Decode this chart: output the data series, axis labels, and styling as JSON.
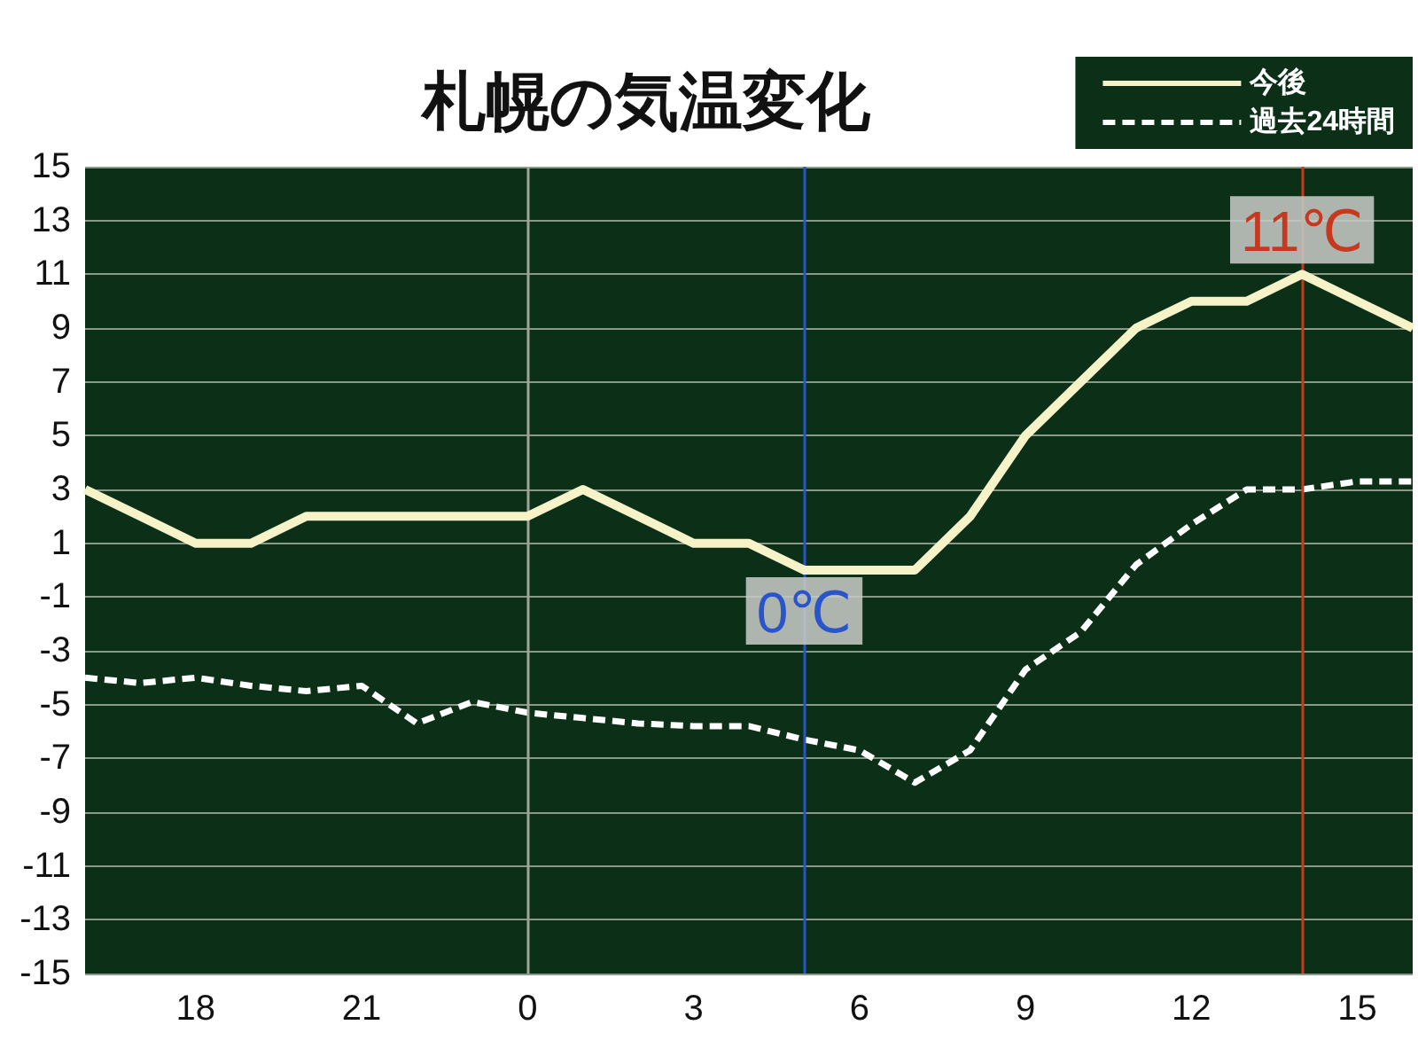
{
  "chart_data": {
    "type": "line",
    "title": "札幌の気温変化",
    "categories": [
      null,
      null,
      "18",
      null,
      null,
      "21",
      null,
      null,
      "0",
      null,
      null,
      "3",
      null,
      null,
      "6",
      null,
      null,
      "9",
      null,
      null,
      "12",
      null,
      null,
      "15",
      null
    ],
    "series": [
      {
        "name": "今後",
        "color": "#f6f3c9",
        "line_style": "solid",
        "values": [
          3,
          2,
          1,
          1,
          2,
          2,
          2,
          2,
          2,
          3,
          2,
          1,
          1,
          0,
          0,
          0,
          2,
          5,
          7,
          9,
          10,
          10,
          11,
          10,
          9
        ]
      },
      {
        "name": "過去24時間",
        "color": "#ffffff",
        "line_style": "dashed",
        "values": [
          -4,
          -4.2,
          -4,
          -4.3,
          -4.5,
          -4.3,
          -5.7,
          -4.9,
          -5.3,
          -5.5,
          -5.7,
          -5.8,
          -5.8,
          -6.3,
          -6.7,
          -7.9,
          -6.7,
          -3.7,
          -2.3,
          0.2,
          1.7,
          3,
          3,
          3.3,
          3.3
        ]
      }
    ],
    "ylim": [
      -15,
      15
    ],
    "yticks": [
      -15,
      -13,
      -11,
      -9,
      -7,
      -5,
      -3,
      -1,
      1,
      3,
      5,
      7,
      9,
      11,
      13,
      15
    ],
    "grid": "y",
    "legend": "top right",
    "ref_lines": [
      {
        "axis": "x",
        "value": "0",
        "color": "#9ea69c"
      }
    ],
    "annotations": [
      {
        "text": "0℃",
        "y": 0
      },
      {
        "text": "11℃",
        "y": 11
      }
    ]
  }
}
